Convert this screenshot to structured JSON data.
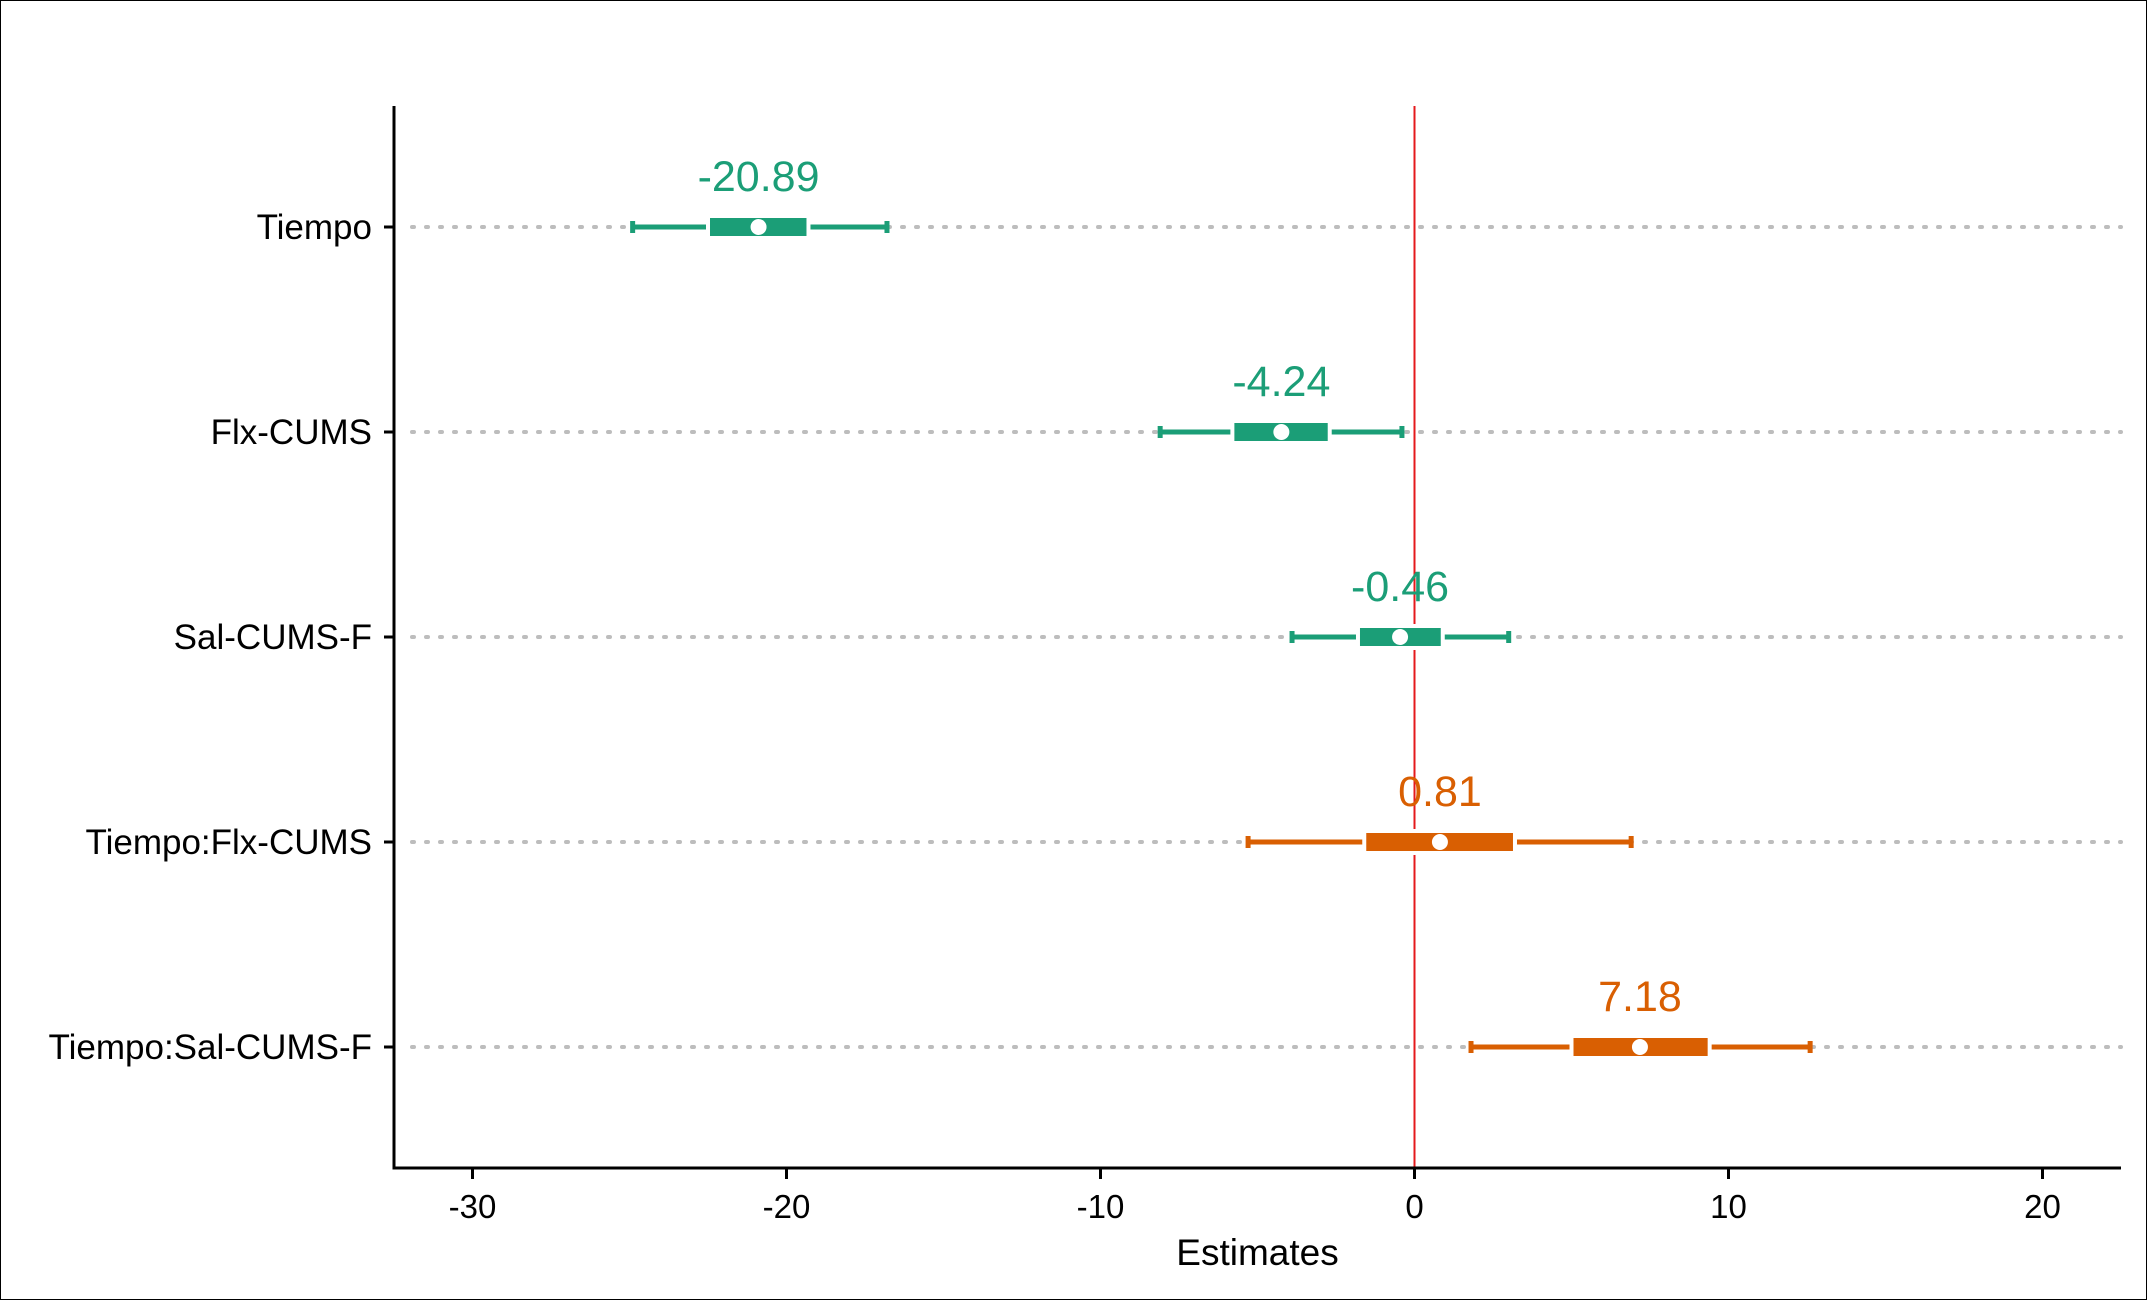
{
  "chart_data": {
    "type": "forest",
    "title": "",
    "xlabel": "Estimates",
    "ylabel": "",
    "xlim": [
      -32.5,
      22.5
    ],
    "xticks": [
      {
        "value": -30,
        "label": "-30"
      },
      {
        "value": -20,
        "label": "-20"
      },
      {
        "value": -10,
        "label": "-10"
      },
      {
        "value": 0,
        "label": "0"
      },
      {
        "value": 10,
        "label": "10"
      },
      {
        "value": 20,
        "label": "20"
      }
    ],
    "reference_line": {
      "value": 0,
      "color": "#e41a1c"
    },
    "grid": "dotted horizontal lines at each term",
    "colors": {
      "negative": "#1b9e77",
      "positive": "#d95f02"
    },
    "series": [
      {
        "term": "Tiempo",
        "label": "-20.89",
        "estimate": -20.89,
        "inner_low": -22.5,
        "inner_high": -19.3,
        "ci_low": -24.9,
        "ci_high": -16.8,
        "color": "#1b9e77"
      },
      {
        "term": "Flx-CUMS",
        "label": "-4.24",
        "estimate": -4.24,
        "inner_low": -5.8,
        "inner_high": -2.7,
        "ci_low": -8.1,
        "ci_high": -0.4,
        "color": "#1b9e77"
      },
      {
        "term": "Sal-CUMS-F",
        "label": "-0.46",
        "estimate": -0.46,
        "inner_low": -1.8,
        "inner_high": 0.9,
        "ci_low": -3.9,
        "ci_high": 3.0,
        "color": "#1b9e77"
      },
      {
        "term": "Tiempo:Flx-CUMS",
        "label": "0.81",
        "estimate": 0.81,
        "inner_low": -1.6,
        "inner_high": 3.2,
        "ci_low": -5.3,
        "ci_high": 6.9,
        "color": "#d95f02"
      },
      {
        "term": "Tiempo:Sal-CUMS-F",
        "label": "7.18",
        "estimate": 7.18,
        "inner_low": 5.0,
        "inner_high": 9.4,
        "ci_low": 1.8,
        "ci_high": 12.6,
        "color": "#d95f02"
      }
    ]
  }
}
